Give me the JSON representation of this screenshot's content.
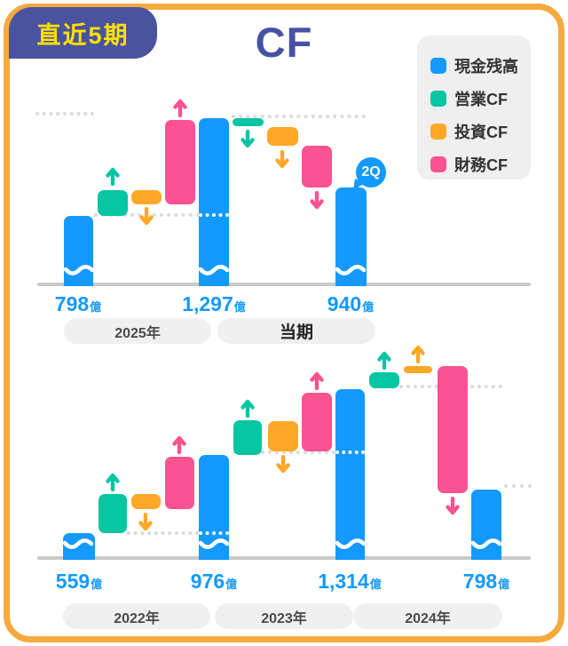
{
  "badge": {
    "label": "直近5期"
  },
  "title": "CF",
  "legend": {
    "items": [
      {
        "id": "cash",
        "label": "現金残高",
        "color": "#1499FE"
      },
      {
        "id": "operating",
        "label": "営業CF",
        "color": "#05C5A2"
      },
      {
        "id": "investing",
        "label": "投資CF",
        "color": "#FFA726"
      },
      {
        "id": "financing",
        "label": "財務CF",
        "color": "#FB5291"
      }
    ]
  },
  "chart_data": [
    {
      "type": "waterfall",
      "name": "recent-period",
      "unit": "億",
      "totals": [
        {
          "value": "798",
          "unit": "億"
        },
        {
          "value": "1,297",
          "unit": "億"
        },
        {
          "value": "940",
          "unit": "億"
        }
      ],
      "periods": [
        {
          "label": "2025年",
          "emphasis": false
        },
        {
          "label": "当期",
          "emphasis": true
        }
      ],
      "annotation": "2Q",
      "flows": [
        {
          "period": "2025年",
          "start": 798,
          "end": 1297,
          "segments": [
            {
              "kind": "operating",
              "dir": "up"
            },
            {
              "kind": "investing",
              "dir": "down"
            },
            {
              "kind": "financing",
              "dir": "up"
            }
          ]
        },
        {
          "period": "当期",
          "start": 1297,
          "end": 940,
          "segments": [
            {
              "kind": "operating",
              "dir": "down"
            },
            {
              "kind": "investing",
              "dir": "down"
            },
            {
              "kind": "financing",
              "dir": "down"
            }
          ]
        }
      ]
    },
    {
      "type": "waterfall",
      "name": "history",
      "unit": "億",
      "totals": [
        {
          "value": "559",
          "unit": "億"
        },
        {
          "value": "976",
          "unit": "億"
        },
        {
          "value": "1,314",
          "unit": "億"
        },
        {
          "value": "798",
          "unit": "億"
        }
      ],
      "periods": [
        {
          "label": "2022年",
          "emphasis": false
        },
        {
          "label": "2023年",
          "emphasis": false
        },
        {
          "label": "2024年",
          "emphasis": false
        }
      ],
      "flows": [
        {
          "period": "2022年",
          "start": 559,
          "end": 976,
          "segments": [
            {
              "kind": "operating",
              "dir": "up"
            },
            {
              "kind": "investing",
              "dir": "down"
            },
            {
              "kind": "financing",
              "dir": "up"
            }
          ]
        },
        {
          "period": "2023年",
          "start": 976,
          "end": 1314,
          "segments": [
            {
              "kind": "operating",
              "dir": "up"
            },
            {
              "kind": "investing",
              "dir": "down"
            },
            {
              "kind": "financing",
              "dir": "up"
            }
          ]
        },
        {
          "period": "2024年",
          "start": 1314,
          "end": 798,
          "segments": [
            {
              "kind": "operating",
              "dir": "up"
            },
            {
              "kind": "investing",
              "dir": "up"
            },
            {
              "kind": "financing",
              "dir": "down"
            }
          ]
        }
      ]
    }
  ]
}
